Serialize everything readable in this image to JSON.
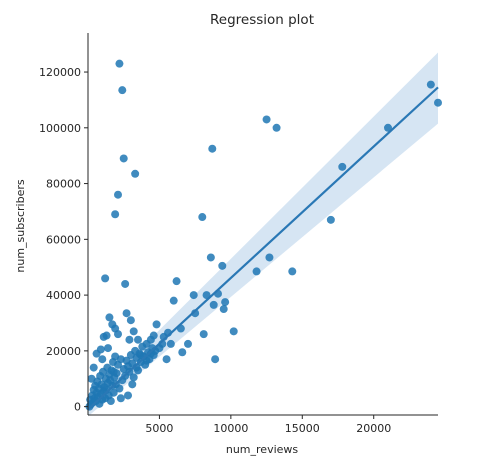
{
  "chart_data": {
    "type": "scatter",
    "title": "Regression plot",
    "xlabel": "num_reviews",
    "ylabel": "num_subscribers",
    "xlim": [
      0,
      24500
    ],
    "ylim": [
      -3000,
      134000
    ],
    "x_ticks": [
      5000,
      10000,
      15000,
      20000
    ],
    "y_ticks": [
      0,
      20000,
      40000,
      60000,
      80000,
      100000,
      120000
    ],
    "grid": false,
    "legend": "none",
    "colors": {
      "points": "#1f77b4",
      "line": "#2a78b5",
      "band": "#cfe0f1"
    },
    "regression": {
      "x": [
        0,
        24500
      ],
      "y": [
        -1000,
        114500
      ],
      "ci_upper": [
        2000,
        127000
      ],
      "ci_lower": [
        -3500,
        101500
      ]
    },
    "points": [
      [
        100,
        0
      ],
      [
        150,
        2500
      ],
      [
        200,
        800
      ],
      [
        300,
        4000
      ],
      [
        350,
        1500
      ],
      [
        400,
        6000
      ],
      [
        450,
        3000
      ],
      [
        500,
        7500
      ],
      [
        550,
        2000
      ],
      [
        600,
        5000
      ],
      [
        650,
        9000
      ],
      [
        700,
        3500
      ],
      [
        750,
        6500
      ],
      [
        800,
        1000
      ],
      [
        850,
        11000
      ],
      [
        900,
        4500
      ],
      [
        950,
        8000
      ],
      [
        1000,
        2500
      ],
      [
        1050,
        12500
      ],
      [
        1100,
        5500
      ],
      [
        1150,
        7000
      ],
      [
        1200,
        3000
      ],
      [
        1250,
        10000
      ],
      [
        1300,
        6000
      ],
      [
        1350,
        14000
      ],
      [
        1400,
        8500
      ],
      [
        1450,
        4000
      ],
      [
        1500,
        11500
      ],
      [
        1550,
        9500
      ],
      [
        1600,
        2000
      ],
      [
        1650,
        13000
      ],
      [
        1700,
        7500
      ],
      [
        1750,
        16000
      ],
      [
        1800,
        5000
      ],
      [
        1850,
        10500
      ],
      [
        1900,
        18000
      ],
      [
        1950,
        8000
      ],
      [
        2000,
        12000
      ],
      [
        2100,
        15000
      ],
      [
        2200,
        6500
      ],
      [
        2300,
        17000
      ],
      [
        2400,
        9500
      ],
      [
        2500,
        13500
      ],
      [
        2600,
        11000
      ],
      [
        2700,
        16500
      ],
      [
        2800,
        14500
      ],
      [
        2900,
        12500
      ],
      [
        3000,
        18500
      ],
      [
        3100,
        15500
      ],
      [
        3200,
        10500
      ],
      [
        3300,
        20000
      ],
      [
        3400,
        17500
      ],
      [
        3500,
        13000
      ],
      [
        3600,
        19000
      ],
      [
        3700,
        16000
      ],
      [
        3800,
        21500
      ],
      [
        3900,
        18000
      ],
      [
        4000,
        15000
      ],
      [
        4100,
        22500
      ],
      [
        4200,
        19500
      ],
      [
        4300,
        17000
      ],
      [
        4400,
        24000
      ],
      [
        4500,
        21000
      ],
      [
        4600,
        18500
      ],
      [
        600,
        19000
      ],
      [
        900,
        20500
      ],
      [
        1100,
        25000
      ],
      [
        1300,
        25500
      ],
      [
        1500,
        32000
      ],
      [
        1700,
        29500
      ],
      [
        1900,
        28000
      ],
      [
        2100,
        26000
      ],
      [
        1200,
        46000
      ],
      [
        1900,
        69000
      ],
      [
        2100,
        76000
      ],
      [
        2200,
        123000
      ],
      [
        2400,
        113500
      ],
      [
        2500,
        89000
      ],
      [
        3300,
        83500
      ],
      [
        2600,
        44000
      ],
      [
        2700,
        33500
      ],
      [
        3000,
        31000
      ],
      [
        3200,
        27000
      ],
      [
        2900,
        24000
      ],
      [
        4800,
        29500
      ],
      [
        5200,
        22500
      ],
      [
        5600,
        26500
      ],
      [
        5800,
        22500
      ],
      [
        6000,
        38000
      ],
      [
        6200,
        45000
      ],
      [
        6500,
        28000
      ],
      [
        7000,
        22500
      ],
      [
        7500,
        33500
      ],
      [
        8000,
        68000
      ],
      [
        8300,
        40000
      ],
      [
        8600,
        53500
      ],
      [
        8700,
        92500
      ],
      [
        8800,
        36500
      ],
      [
        8900,
        17000
      ],
      [
        9400,
        50500
      ],
      [
        9500,
        35000
      ],
      [
        9600,
        37500
      ],
      [
        10200,
        27000
      ],
      [
        11800,
        48500
      ],
      [
        12500,
        103000
      ],
      [
        12700,
        53500
      ],
      [
        13200,
        100000
      ],
      [
        14300,
        48500
      ],
      [
        17000,
        67000
      ],
      [
        17800,
        86000
      ],
      [
        21000,
        100000
      ],
      [
        24000,
        115500
      ],
      [
        24500,
        109000
      ],
      [
        4700,
        20000
      ],
      [
        5000,
        21000
      ],
      [
        5300,
        25000
      ],
      [
        4400,
        19000
      ],
      [
        4100,
        16500
      ],
      [
        3700,
        18500
      ],
      [
        3400,
        14000
      ],
      [
        2800,
        4000
      ],
      [
        3100,
        8000
      ],
      [
        2300,
        3000
      ],
      [
        1800,
        12500
      ],
      [
        1400,
        21000
      ],
      [
        1000,
        17000
      ],
      [
        400,
        14000
      ],
      [
        250,
        10000
      ],
      [
        3500,
        24000
      ],
      [
        4600,
        25500
      ],
      [
        5500,
        17000
      ],
      [
        6600,
        19500
      ],
      [
        7400,
        40000
      ],
      [
        8100,
        26000
      ],
      [
        9100,
        40500
      ]
    ]
  }
}
